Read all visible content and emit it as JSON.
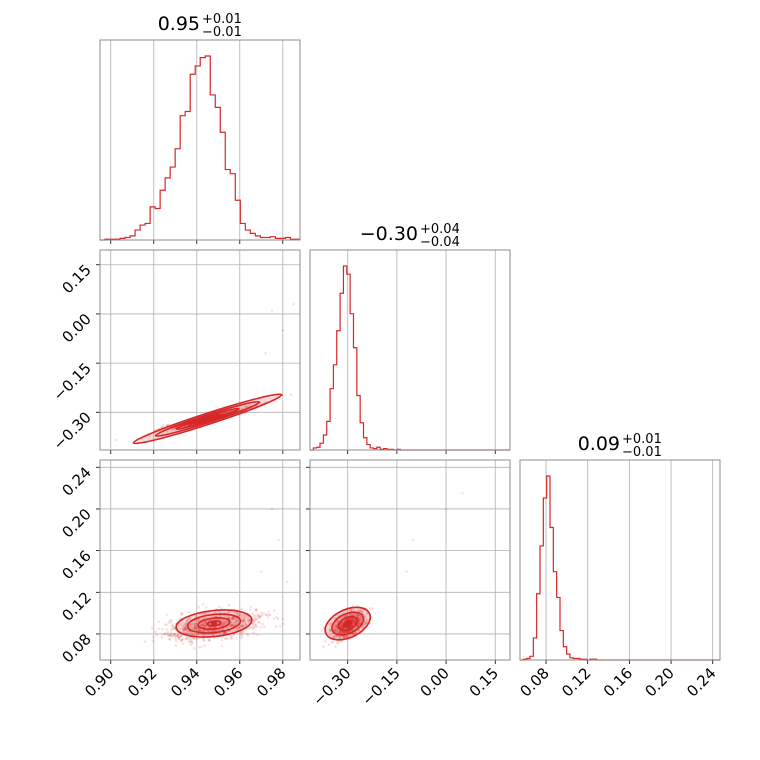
{
  "chart_data": {
    "type": "corner",
    "color": "#d62728",
    "grid": true,
    "parameters": [
      {
        "range": [
          0.895,
          0.988
        ],
        "ticks": [
          0.9,
          0.92,
          0.94,
          0.96,
          0.98
        ],
        "tick_labels": [
          "0.90",
          "0.92",
          "0.94",
          "0.96",
          "0.98"
        ],
        "title": {
          "median": "0.95",
          "plus": "+0.01",
          "minus": "−0.01"
        }
      },
      {
        "range": [
          -0.415,
          0.195
        ],
        "ticks": [
          -0.3,
          -0.15,
          0.0,
          0.15
        ],
        "tick_labels": [
          "−0.30",
          "−0.15",
          "0.00",
          "0.15"
        ],
        "title": {
          "median": "−0.30",
          "plus": "+0.04",
          "minus": "−0.04"
        }
      },
      {
        "range": [
          0.055,
          0.247
        ],
        "ticks": [
          0.08,
          0.12,
          0.16,
          0.2,
          0.24
        ],
        "tick_labels": [
          "0.08",
          "0.12",
          "0.16",
          "0.20",
          "0.24"
        ],
        "title": {
          "median": "0.09",
          "plus": "+0.01",
          "minus": "−0.01"
        }
      }
    ],
    "histograms": [
      {
        "bin_edges_start": 0.895,
        "bin_width": 0.00233,
        "counts": [
          0,
          1,
          1,
          1,
          2,
          3,
          5,
          12,
          18,
          20,
          40,
          38,
          60,
          75,
          88,
          110,
          150,
          155,
          200,
          210,
          220,
          222,
          175,
          160,
          130,
          85,
          80,
          48,
          20,
          12,
          8,
          5,
          3,
          3,
          4,
          2,
          2,
          3,
          1,
          1
        ]
      },
      {
        "bin_edges_start": -0.415,
        "bin_width": 0.0102,
        "counts": [
          0,
          3,
          4,
          10,
          22,
          42,
          90,
          125,
          175,
          230,
          270,
          258,
          200,
          150,
          80,
          40,
          18,
          8,
          3,
          2,
          4,
          1,
          2,
          1,
          1,
          0,
          1,
          0,
          0,
          0,
          0,
          0,
          0,
          0,
          0,
          0,
          0,
          0,
          0,
          0,
          0,
          0,
          0,
          0,
          0,
          0,
          0,
          0,
          0,
          0,
          0,
          0,
          0,
          0,
          0,
          0,
          0,
          0,
          0,
          0
        ]
      },
      {
        "bin_edges_start": 0.055,
        "bin_width": 0.0032,
        "counts": [
          0,
          1,
          2,
          5,
          30,
          90,
          155,
          220,
          250,
          180,
          120,
          85,
          40,
          18,
          8,
          3,
          2,
          2,
          1,
          1,
          0,
          1,
          1,
          0,
          0,
          0,
          0,
          0,
          0,
          0,
          0,
          0,
          0,
          0,
          0,
          0,
          0,
          0,
          0,
          0,
          0,
          0,
          0,
          0,
          0,
          0,
          0,
          0,
          0,
          0,
          0,
          0,
          0,
          0,
          0,
          0,
          0,
          0,
          0,
          0
        ]
      }
    ],
    "pairs": [
      {
        "x_param": 0,
        "y_param": 1,
        "center": [
          0.945,
          -0.32
        ],
        "relation": "y ≈ -1.9 + 1.67x"
      },
      {
        "x_param": 0,
        "y_param": 2,
        "center": [
          0.948,
          0.09
        ]
      },
      {
        "x_param": 1,
        "y_param": 2,
        "center": [
          -0.3,
          0.09
        ]
      }
    ]
  }
}
